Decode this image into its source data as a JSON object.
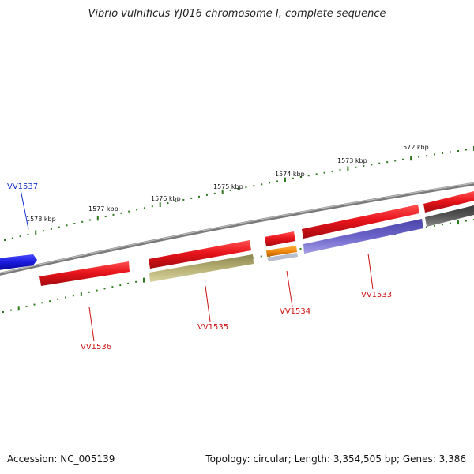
{
  "title": "Vibrio vulnificus YJ016 chromosome I, complete sequence",
  "footer": {
    "accession": "Accession: NC_005139",
    "summary": "Topology: circular; Length: 3,354,505 bp; Genes: 3,386"
  },
  "colors": {
    "backbone": "#8a8a8a",
    "tick": "#2d7a1f",
    "red_gene": "#e8141b",
    "label_red": "#cc1111",
    "label_blue": "#1133cc",
    "blue_gene": "#1a1adc",
    "olive_gene": "#b7b073",
    "orange_gene": "#f08a10",
    "purple_gene": "#6a62c8",
    "dark_gene": "#555555"
  },
  "kbp_labels": [
    "1578 kbp",
    "1577 kbp",
    "1576 kbp",
    "1575 kbp",
    "1574 kbp",
    "1573 kbp",
    "1572 kbp"
  ],
  "gene_labels": {
    "vv1537": "VV1537",
    "vv1536": "VV1536",
    "vv1535": "VV1535",
    "vv1534": "VV1534",
    "vv1533": "VV1533"
  }
}
